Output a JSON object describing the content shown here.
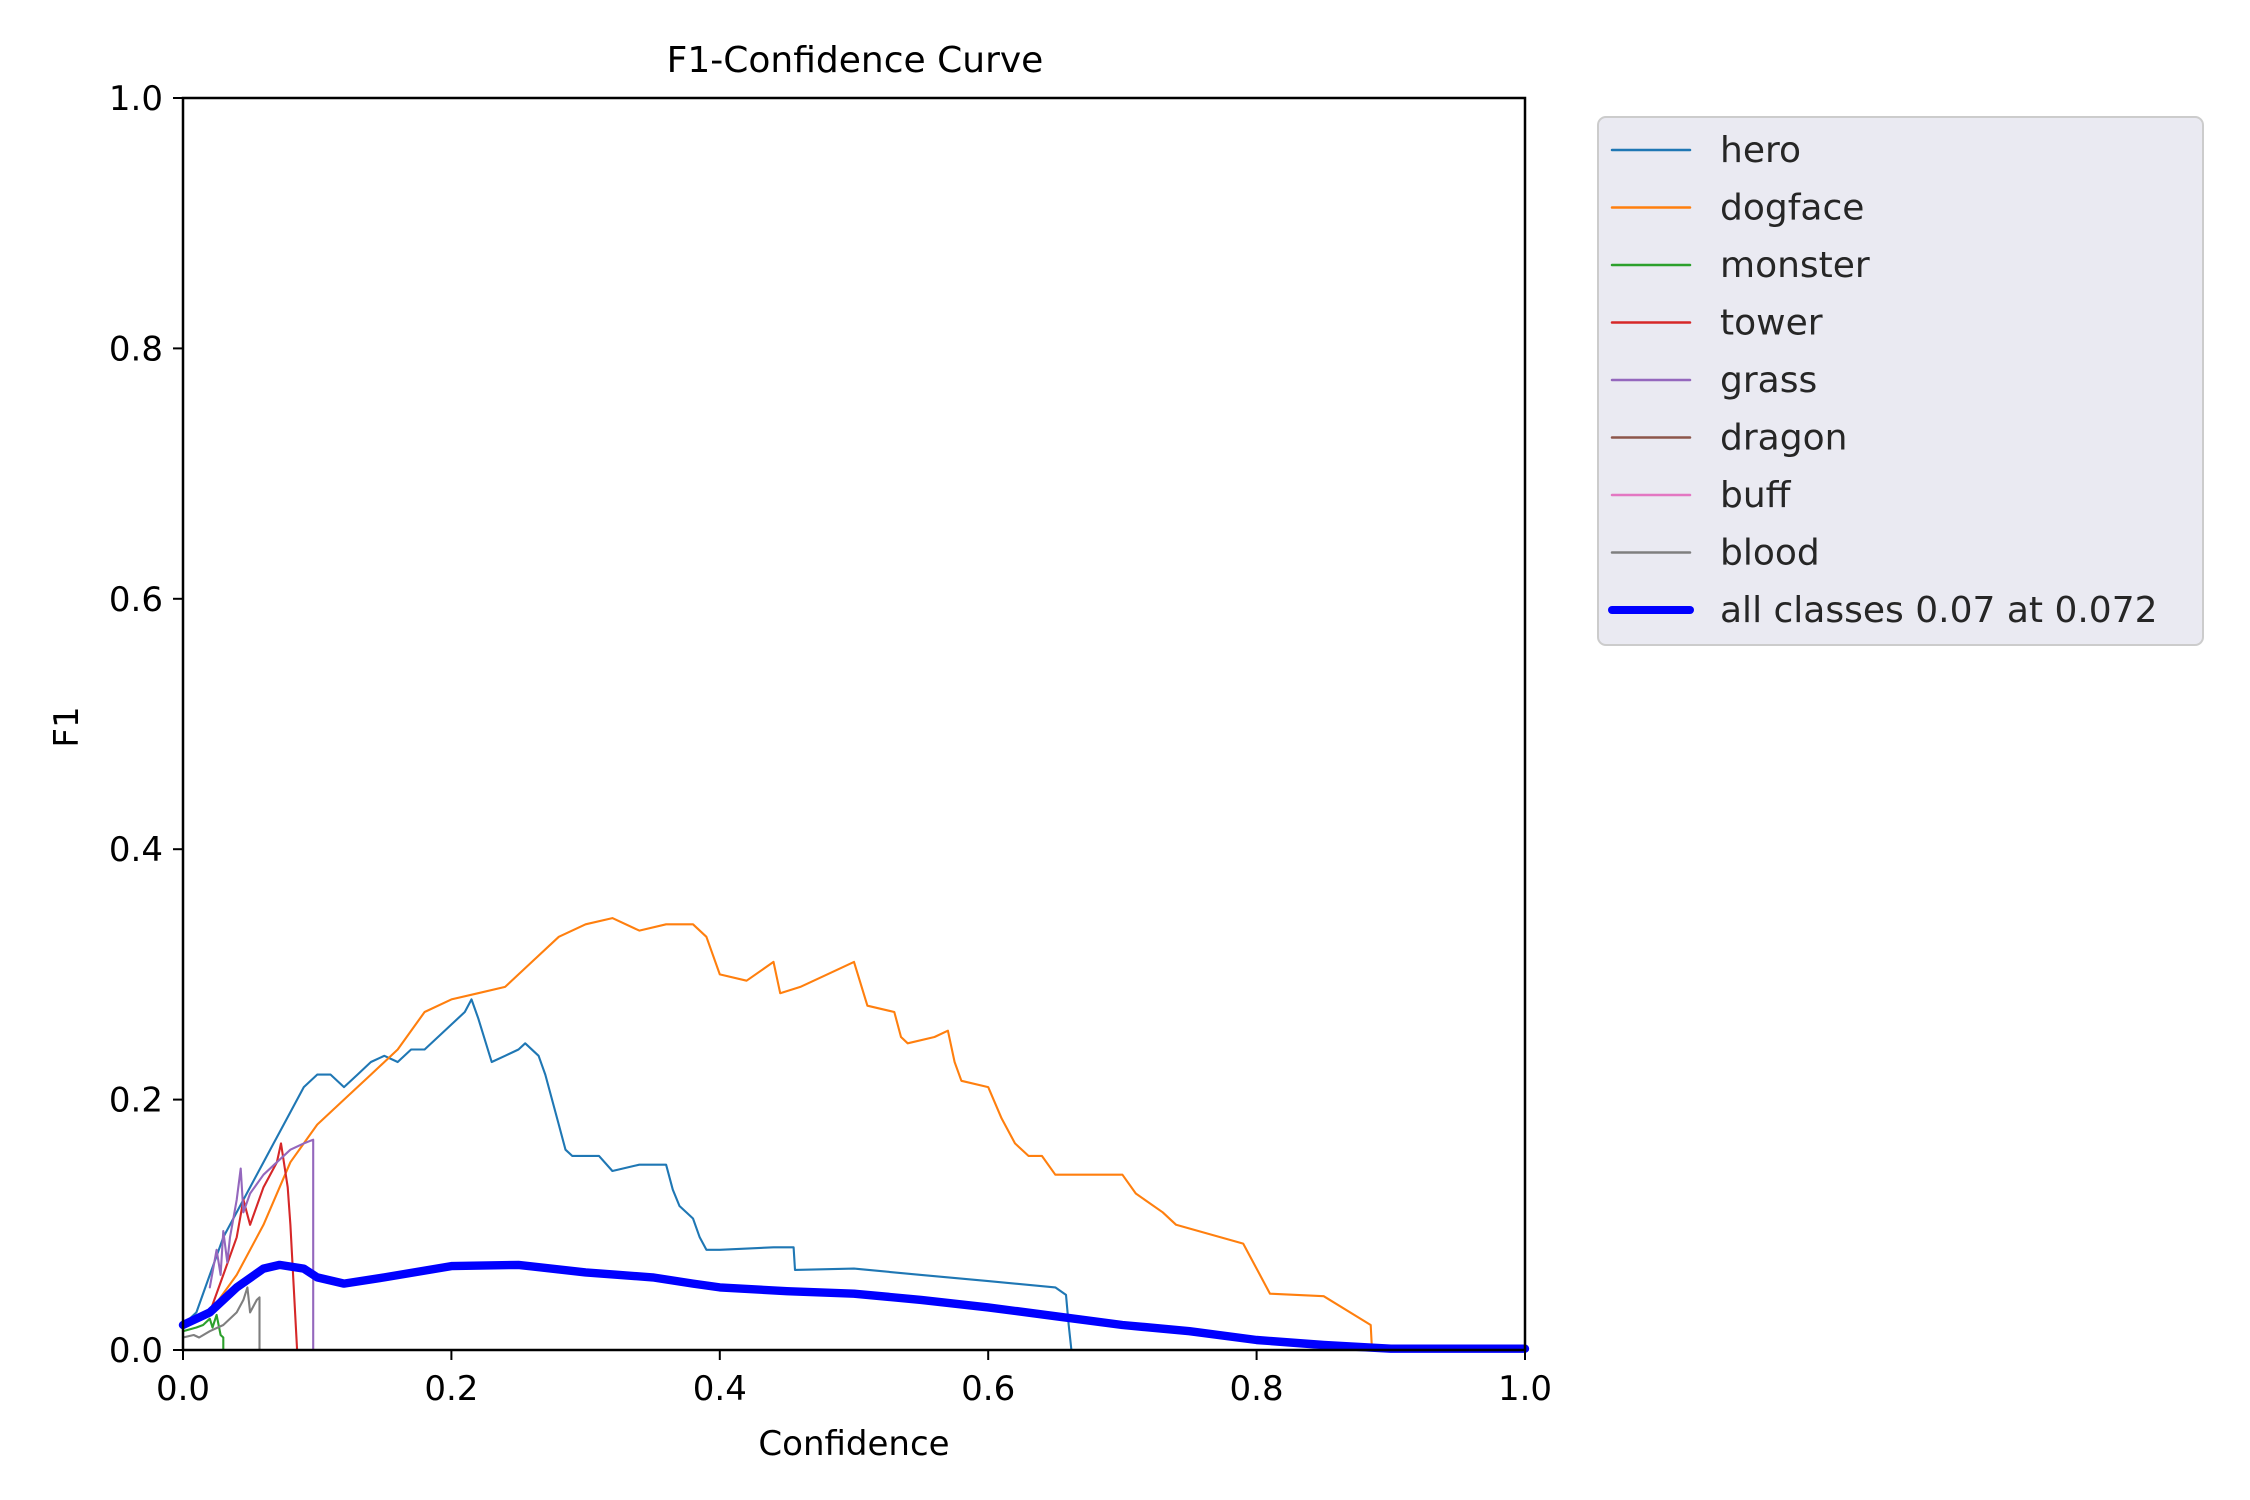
{
  "colors": {
    "hero": "#1f77b4",
    "dogface": "#ff7f0e",
    "monster": "#2ca02c",
    "tower": "#d62728",
    "grass": "#9467bd",
    "dragon": "#8c564b",
    "buff": "#e377c2",
    "blood": "#7f7f7f",
    "all": "#0000ff",
    "legend_bg": "#eaeaf2"
  },
  "chart_data": {
    "type": "line",
    "title": "F1-Confidence Curve",
    "xlabel": "Confidence",
    "ylabel": "F1",
    "xlim": [
      0,
      1
    ],
    "ylim": [
      0,
      1
    ],
    "xticks": [
      "0.0",
      "0.2",
      "0.4",
      "0.6",
      "0.8",
      "1.0"
    ],
    "yticks": [
      "0.0",
      "0.2",
      "0.4",
      "0.6",
      "0.8",
      "1.0"
    ],
    "grid": false,
    "legend": "outside-top-right",
    "series": [
      {
        "name": "hero",
        "color": "#1f77b4",
        "width": 1.5,
        "x": [
          0.0,
          0.01,
          0.02,
          0.03,
          0.04,
          0.05,
          0.06,
          0.07,
          0.08,
          0.09,
          0.1,
          0.11,
          0.12,
          0.13,
          0.14,
          0.15,
          0.16,
          0.17,
          0.18,
          0.19,
          0.2,
          0.21,
          0.215,
          0.22,
          0.23,
          0.24,
          0.25,
          0.255,
          0.265,
          0.27,
          0.28,
          0.285,
          0.29,
          0.31,
          0.32,
          0.34,
          0.36,
          0.365,
          0.37,
          0.38,
          0.385,
          0.39,
          0.4,
          0.44,
          0.455,
          0.456,
          0.5,
          0.55,
          0.6,
          0.65,
          0.658,
          0.66,
          0.662
        ],
        "y": [
          0.02,
          0.03,
          0.06,
          0.09,
          0.11,
          0.13,
          0.15,
          0.17,
          0.19,
          0.21,
          0.22,
          0.22,
          0.21,
          0.22,
          0.23,
          0.235,
          0.23,
          0.24,
          0.24,
          0.25,
          0.26,
          0.27,
          0.28,
          0.265,
          0.23,
          0.235,
          0.24,
          0.245,
          0.235,
          0.22,
          0.18,
          0.16,
          0.155,
          0.155,
          0.143,
          0.148,
          0.148,
          0.128,
          0.115,
          0.105,
          0.09,
          0.08,
          0.08,
          0.082,
          0.082,
          0.064,
          0.065,
          0.06,
          0.055,
          0.05,
          0.044,
          0.02,
          0.0
        ]
      },
      {
        "name": "dogface",
        "color": "#ff7f0e",
        "width": 1.5,
        "x": [
          0.0,
          0.02,
          0.04,
          0.06,
          0.08,
          0.1,
          0.12,
          0.14,
          0.16,
          0.18,
          0.2,
          0.22,
          0.24,
          0.26,
          0.28,
          0.3,
          0.32,
          0.34,
          0.36,
          0.38,
          0.39,
          0.4,
          0.42,
          0.44,
          0.445,
          0.46,
          0.48,
          0.5,
          0.51,
          0.53,
          0.535,
          0.54,
          0.56,
          0.57,
          0.575,
          0.58,
          0.6,
          0.61,
          0.62,
          0.63,
          0.64,
          0.65,
          0.66,
          0.67,
          0.7,
          0.71,
          0.73,
          0.74,
          0.79,
          0.8,
          0.81,
          0.85,
          0.885,
          0.886
        ],
        "y": [
          0.02,
          0.03,
          0.06,
          0.1,
          0.15,
          0.18,
          0.2,
          0.22,
          0.24,
          0.27,
          0.28,
          0.285,
          0.29,
          0.31,
          0.33,
          0.34,
          0.345,
          0.335,
          0.34,
          0.34,
          0.33,
          0.3,
          0.295,
          0.31,
          0.285,
          0.29,
          0.3,
          0.31,
          0.275,
          0.27,
          0.25,
          0.245,
          0.25,
          0.255,
          0.23,
          0.215,
          0.21,
          0.185,
          0.165,
          0.155,
          0.155,
          0.14,
          0.14,
          0.14,
          0.14,
          0.125,
          0.11,
          0.1,
          0.085,
          0.065,
          0.045,
          0.043,
          0.02,
          0.0
        ]
      },
      {
        "name": "monster",
        "color": "#2ca02c",
        "width": 1.5,
        "x": [
          0.0,
          0.01,
          0.015,
          0.02,
          0.022,
          0.025,
          0.028,
          0.03,
          0.03
        ],
        "y": [
          0.015,
          0.018,
          0.02,
          0.025,
          0.018,
          0.028,
          0.012,
          0.01,
          0.0
        ]
      },
      {
        "name": "tower",
        "color": "#d62728",
        "width": 1.5,
        "x": [
          0.02,
          0.03,
          0.04,
          0.045,
          0.05,
          0.06,
          0.065,
          0.07,
          0.073,
          0.078,
          0.08,
          0.085
        ],
        "y": [
          0.03,
          0.06,
          0.09,
          0.12,
          0.1,
          0.13,
          0.14,
          0.15,
          0.165,
          0.13,
          0.1,
          0.0
        ]
      },
      {
        "name": "grass",
        "color": "#9467bd",
        "width": 1.5,
        "x": [
          0.02,
          0.025,
          0.028,
          0.03,
          0.033,
          0.035,
          0.04,
          0.043,
          0.045,
          0.05,
          0.06,
          0.07,
          0.08,
          0.09,
          0.097,
          0.097
        ],
        "y": [
          0.05,
          0.08,
          0.06,
          0.095,
          0.07,
          0.09,
          0.12,
          0.145,
          0.11,
          0.125,
          0.14,
          0.15,
          0.16,
          0.165,
          0.168,
          0.0
        ]
      },
      {
        "name": "dragon",
        "color": "#8c564b",
        "width": 1.5,
        "x": [],
        "y": []
      },
      {
        "name": "buff",
        "color": "#e377c2",
        "width": 1.5,
        "x": [],
        "y": []
      },
      {
        "name": "blood",
        "color": "#7f7f7f",
        "width": 1.5,
        "x": [
          0.0,
          0.008,
          0.012,
          0.02,
          0.03,
          0.04,
          0.045,
          0.048,
          0.05,
          0.055,
          0.057,
          0.057
        ],
        "y": [
          0.01,
          0.012,
          0.01,
          0.015,
          0.02,
          0.03,
          0.04,
          0.05,
          0.03,
          0.04,
          0.042,
          0.0
        ]
      },
      {
        "name": "all classes 0.07 at 0.072",
        "color": "#0000ff",
        "width": 6,
        "x": [
          0.0,
          0.02,
          0.04,
          0.06,
          0.072,
          0.09,
          0.1,
          0.12,
          0.15,
          0.2,
          0.25,
          0.3,
          0.35,
          0.38,
          0.4,
          0.45,
          0.5,
          0.55,
          0.6,
          0.65,
          0.7,
          0.75,
          0.8,
          0.85,
          0.9,
          1.0
        ],
        "y": [
          0.02,
          0.03,
          0.05,
          0.065,
          0.068,
          0.065,
          0.058,
          0.053,
          0.058,
          0.067,
          0.068,
          0.062,
          0.058,
          0.053,
          0.05,
          0.047,
          0.045,
          0.04,
          0.034,
          0.027,
          0.02,
          0.015,
          0.008,
          0.004,
          0.001,
          0.001
        ]
      }
    ]
  }
}
